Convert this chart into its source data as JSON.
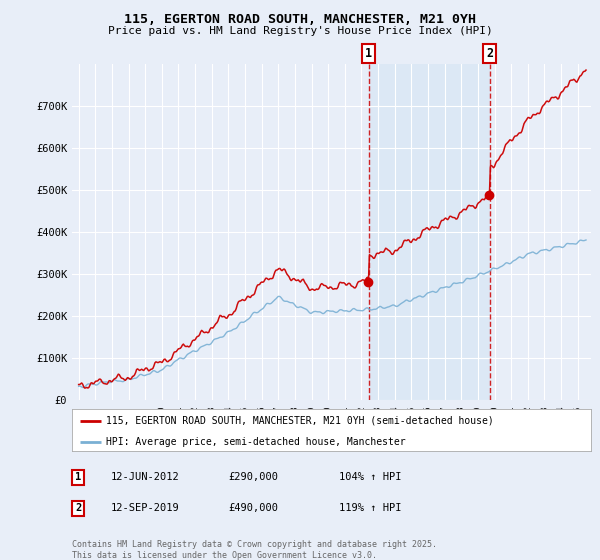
{
  "title": "115, EGERTON ROAD SOUTH, MANCHESTER, M21 0YH",
  "subtitle": "Price paid vs. HM Land Registry's House Price Index (HPI)",
  "red_label": "115, EGERTON ROAD SOUTH, MANCHESTER, M21 0YH (semi-detached house)",
  "blue_label": "HPI: Average price, semi-detached house, Manchester",
  "annotation1": {
    "num": "1",
    "date": "12-JUN-2012",
    "price": "£290,000",
    "pct": "104% ↑ HPI",
    "year": 2012.45
  },
  "annotation2": {
    "num": "2",
    "date": "12-SEP-2019",
    "price": "£490,000",
    "pct": "119% ↑ HPI",
    "year": 2019.7
  },
  "footer": "Contains HM Land Registry data © Crown copyright and database right 2025.\nThis data is licensed under the Open Government Licence v3.0.",
  "ylim": [
    0,
    800000
  ],
  "yticks": [
    0,
    100000,
    200000,
    300000,
    400000,
    500000,
    600000,
    700000
  ],
  "ytick_labels": [
    "£0",
    "£100K",
    "£200K",
    "£300K",
    "£400K",
    "£500K",
    "£600K",
    "£700K"
  ],
  "background_color": "#e8eef8",
  "plot_bg_color": "#e8eef8",
  "shade_color": "#dce8f5",
  "red_color": "#cc0000",
  "blue_color": "#7ab0d4",
  "grid_color": "#ffffff",
  "xlim_left": 1994.6,
  "xlim_right": 2025.8
}
